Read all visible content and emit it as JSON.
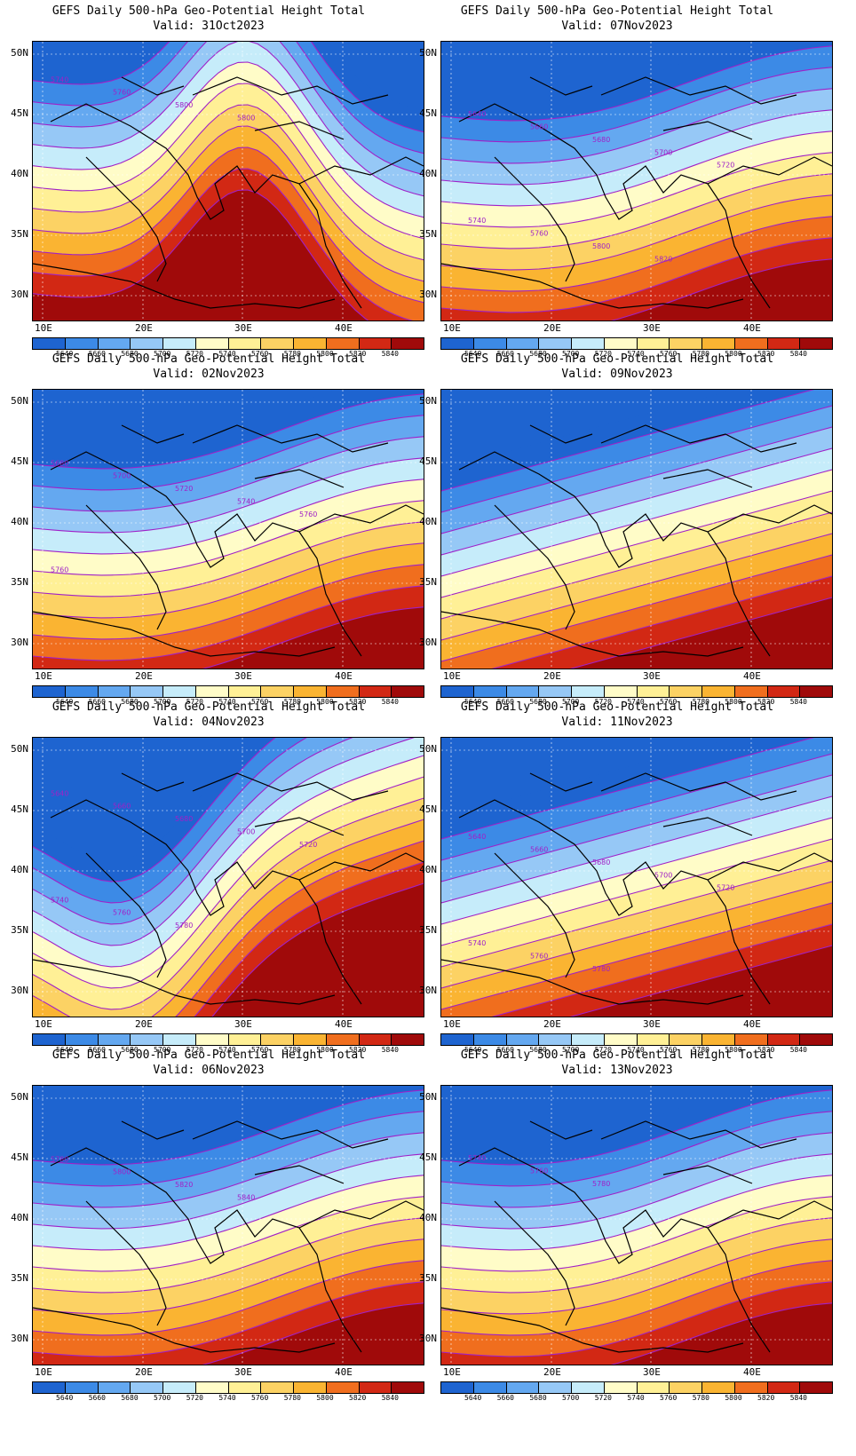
{
  "colorbar": {
    "labels": [
      "5640",
      "5660",
      "5680",
      "5700",
      "5720",
      "5740",
      "5760",
      "5780",
      "5800",
      "5820",
      "5840"
    ],
    "colors": [
      "#1e64d0",
      "#3c8ae6",
      "#64a8f0",
      "#96c8f6",
      "#c6ecfa",
      "#fffcc8",
      "#fff096",
      "#fcd264",
      "#fab432",
      "#f06e1e",
      "#d22814",
      "#a00a0a"
    ]
  },
  "axes": {
    "lat_labels": [
      "50N",
      "45N",
      "40N",
      "35N",
      "30N"
    ],
    "lon_labels": [
      "10E",
      "20E",
      "30E",
      "40E"
    ]
  },
  "contour_color": "#a020c8",
  "panels": [
    {
      "title": "GEFS Daily 500-hPa Geo-Potential Height Total",
      "valid": "Valid: 31Oct2023",
      "contour_labels": [
        "5740",
        "5760",
        "5800",
        "5800"
      ],
      "chart_data": {
        "type": "heatmap",
        "field": "500-hPa geopotential height",
        "pattern": "ridge",
        "levels_min": 5640,
        "levels_max": 5840
      }
    },
    {
      "title": "GEFS Daily 500-hPa Geo-Potential Height Total",
      "valid": "Valid: 07Nov2023",
      "contour_labels": [
        "5640",
        "5660",
        "5680",
        "5700",
        "5720",
        "5740",
        "5760",
        "5800",
        "5820"
      ],
      "chart_data": {
        "type": "heatmap",
        "field": "500-hPa geopotential height",
        "pattern": "zonal",
        "levels_min": 5640,
        "levels_max": 5840
      }
    },
    {
      "title": "GEFS Daily 500-hPa Geo-Potential Height Total",
      "valid": "Valid: 02Nov2023",
      "contour_labels": [
        "5680",
        "5700",
        "5720",
        "5740",
        "5760",
        "5760"
      ],
      "chart_data": {
        "type": "heatmap",
        "field": "500-hPa geopotential height",
        "pattern": "zonal",
        "levels_min": 5640,
        "levels_max": 5840
      }
    },
    {
      "title": "GEFS Daily 500-hPa Geo-Potential Height Total",
      "valid": "Valid: 09Nov2023",
      "contour_labels": [],
      "chart_data": {
        "type": "heatmap",
        "field": "500-hPa geopotential height",
        "pattern": "tilted",
        "levels_min": 5640,
        "levels_max": 5840
      }
    },
    {
      "title": "GEFS Daily 500-hPa Geo-Potential Height Total",
      "valid": "Valid: 04Nov2023",
      "contour_labels": [
        "5640",
        "5660",
        "5680",
        "5700",
        "5720",
        "5740",
        "5760",
        "5780"
      ],
      "chart_data": {
        "type": "heatmap",
        "field": "500-hPa geopotential height",
        "pattern": "trough",
        "levels_min": 5640,
        "levels_max": 5840
      }
    },
    {
      "title": "GEFS Daily 500-hPa Geo-Potential Height Total",
      "valid": "Valid: 11Nov2023",
      "contour_labels": [
        "5640",
        "5660",
        "5680",
        "5700",
        "5720",
        "5740",
        "5760",
        "5780"
      ],
      "chart_data": {
        "type": "heatmap",
        "field": "500-hPa geopotential height",
        "pattern": "tilted",
        "levels_min": 5640,
        "levels_max": 5840
      }
    },
    {
      "title": "GEFS Daily 500-hPa Geo-Potential Height Total",
      "valid": "Valid: 06Nov2023",
      "contour_labels": [
        "5780",
        "5800",
        "5820",
        "5840"
      ],
      "chart_data": {
        "type": "heatmap",
        "field": "500-hPa geopotential height",
        "pattern": "zonal",
        "levels_min": 5640,
        "levels_max": 5840
      }
    },
    {
      "title": "GEFS Daily 500-hPa Geo-Potential Height Total",
      "valid": "Valid: 13Nov2023",
      "contour_labels": [
        "5740",
        "5760",
        "5780"
      ],
      "chart_data": {
        "type": "heatmap",
        "field": "500-hPa geopotential height",
        "pattern": "zonal",
        "levels_min": 5640,
        "levels_max": 5840
      }
    }
  ]
}
